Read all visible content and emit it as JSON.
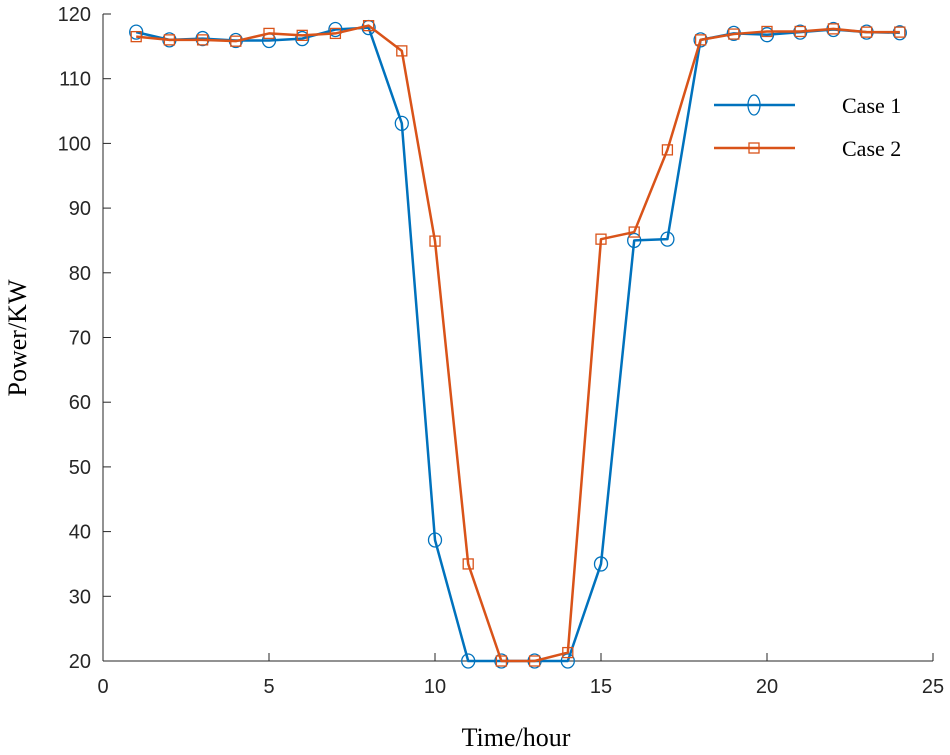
{
  "chart_data": {
    "type": "line",
    "title": "",
    "xlabel": "Time/hour",
    "ylabel": "Power/KW",
    "xlim": [
      0,
      25
    ],
    "ylim": [
      20,
      120
    ],
    "xticks": [
      0,
      5,
      10,
      15,
      20,
      25
    ],
    "yticks": [
      20,
      30,
      40,
      50,
      60,
      70,
      80,
      90,
      100,
      110,
      120
    ],
    "x": [
      1,
      2,
      3,
      4,
      5,
      6,
      7,
      8,
      9,
      10,
      11,
      12,
      13,
      14,
      15,
      16,
      17,
      18,
      19,
      20,
      21,
      22,
      23,
      24
    ],
    "legend_position": "top-right",
    "grid": false,
    "series": [
      {
        "name": "Case 1",
        "color": "#0072BD",
        "marker": "circle",
        "values": [
          117.2,
          116.0,
          116.2,
          115.9,
          115.9,
          116.2,
          117.6,
          117.9,
          103.1,
          38.7,
          20.0,
          20.0,
          20.0,
          20.0,
          35.0,
          85.0,
          85.2,
          116.0,
          117.0,
          116.8,
          117.2,
          117.6,
          117.2,
          117.1
        ]
      },
      {
        "name": "Case 2",
        "color": "#D95319",
        "marker": "square",
        "values": [
          116.5,
          116.0,
          116.0,
          115.8,
          117.0,
          116.7,
          117.0,
          118.2,
          114.3,
          84.9,
          35.0,
          20.0,
          20.0,
          21.3,
          85.2,
          86.3,
          99.0,
          116.0,
          116.9,
          117.3,
          117.3,
          117.7,
          117.2,
          117.2
        ]
      }
    ]
  }
}
